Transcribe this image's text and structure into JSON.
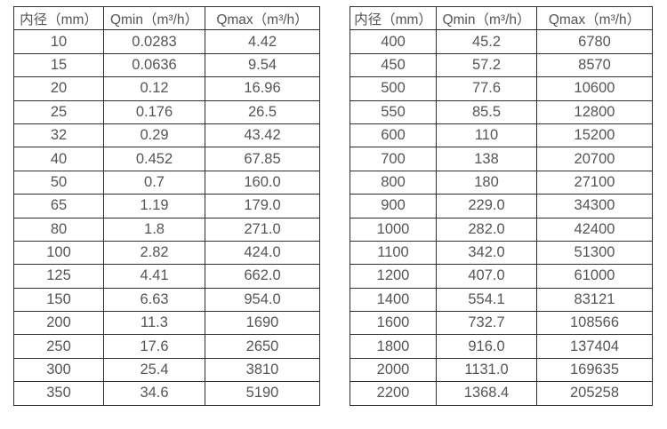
{
  "theme": {
    "border_color": "#2f2f2f",
    "text_color": "#555555",
    "background_color": "#ffffff"
  },
  "tables": [
    {
      "title": "small-diameter-flow-ranges",
      "headers": [
        "内径（mm）",
        "Qmin（m³/h）",
        "Qmax（m³/h）"
      ],
      "rows": [
        [
          "10",
          "0.0283",
          "4.42"
        ],
        [
          "15",
          "0.0636",
          "9.54"
        ],
        [
          "20",
          "0.12",
          "16.96"
        ],
        [
          "25",
          "0.176",
          "26.5"
        ],
        [
          "32",
          "0.29",
          "43.42"
        ],
        [
          "40",
          "0.452",
          "67.85"
        ],
        [
          "50",
          "0.7",
          "160.0"
        ],
        [
          "65",
          "1.19",
          "179.0"
        ],
        [
          "80",
          "1.8",
          "271.0"
        ],
        [
          "100",
          "2.82",
          "424.0"
        ],
        [
          "125",
          "4.41",
          "662.0"
        ],
        [
          "150",
          "6.63",
          "954.0"
        ],
        [
          "200",
          "11.3",
          "1690"
        ],
        [
          "250",
          "17.6",
          "2650"
        ],
        [
          "300",
          "25.4",
          "3810"
        ],
        [
          "350",
          "34.6",
          "5190"
        ]
      ]
    },
    {
      "title": "large-diameter-flow-ranges",
      "headers": [
        "内径（mm）",
        "Qmin（m³/h）",
        "Qmax（m³/h）"
      ],
      "rows": [
        [
          "400",
          "45.2",
          "6780"
        ],
        [
          "450",
          "57.2",
          "8570"
        ],
        [
          "500",
          "77.6",
          "10600"
        ],
        [
          "550",
          "85.5",
          "12800"
        ],
        [
          "600",
          "110",
          "15200"
        ],
        [
          "700",
          "138",
          "20700"
        ],
        [
          "800",
          "180",
          "27100"
        ],
        [
          "900",
          "229.0",
          "34300"
        ],
        [
          "1000",
          "282.0",
          "42400"
        ],
        [
          "1100",
          "342.0",
          "51300"
        ],
        [
          "1200",
          "407.0",
          "61000"
        ],
        [
          "1400",
          "554.1",
          "83121"
        ],
        [
          "1600",
          "732.7",
          "108566"
        ],
        [
          "1800",
          "916.0",
          "137404"
        ],
        [
          "2000",
          "1131.0",
          "169635"
        ],
        [
          "2200",
          "1368.4",
          "205258"
        ]
      ]
    }
  ]
}
